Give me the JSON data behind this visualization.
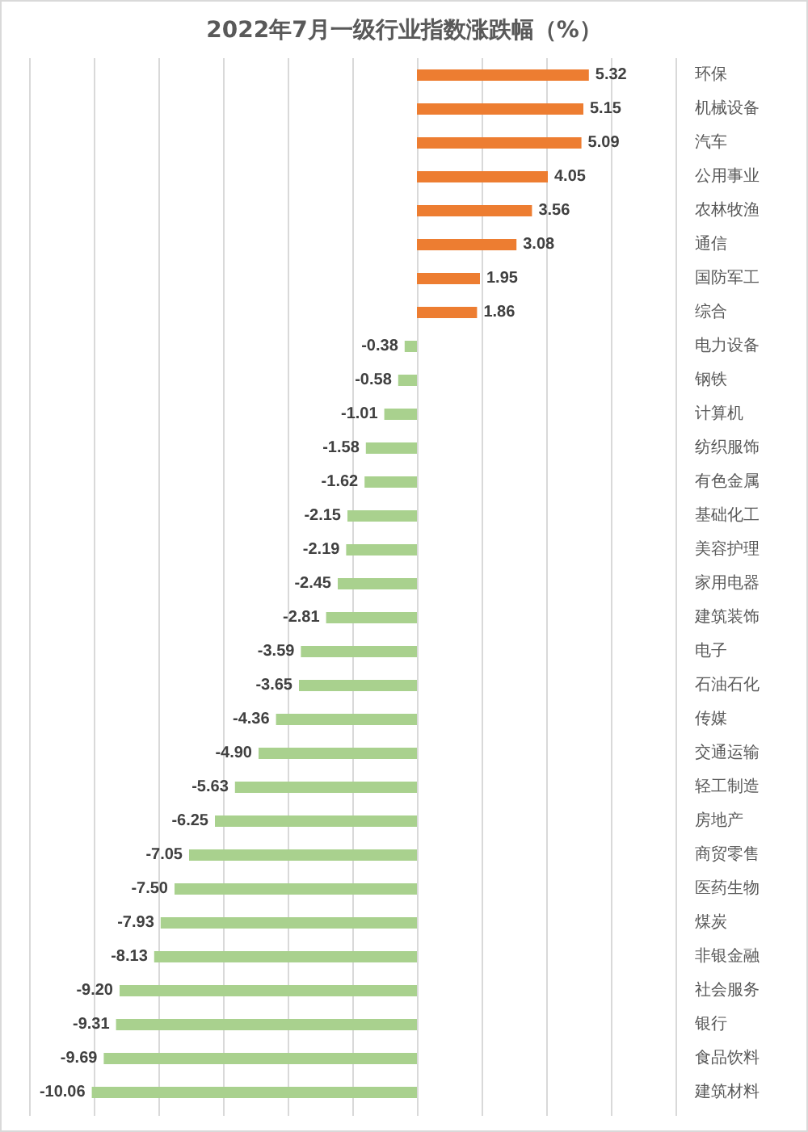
{
  "chart_data": {
    "type": "bar",
    "orientation": "horizontal",
    "title": "2022年7月一级行业指数涨跌幅（%）",
    "categories": [
      "环保",
      "机械设备",
      "汽车",
      "公用事业",
      "农林牧渔",
      "通信",
      "国防军工",
      "综合",
      "电力设备",
      "钢铁",
      "计算机",
      "纺织服饰",
      "有色金属",
      "基础化工",
      "美容护理",
      "家用电器",
      "建筑装饰",
      "电子",
      "石油石化",
      "传媒",
      "交通运输",
      "轻工制造",
      "房地产",
      "商贸零售",
      "医药生物",
      "煤炭",
      "非银金融",
      "社会服务",
      "银行",
      "食品饮料",
      "建筑材料"
    ],
    "values": [
      5.32,
      5.15,
      5.09,
      4.05,
      3.56,
      3.08,
      1.95,
      1.86,
      -0.38,
      -0.58,
      -1.01,
      -1.58,
      -1.62,
      -2.15,
      -2.19,
      -2.45,
      -2.81,
      -3.59,
      -3.65,
      -4.36,
      -4.9,
      -5.63,
      -6.25,
      -7.05,
      -7.5,
      -7.93,
      -8.13,
      -9.2,
      -9.31,
      -9.69,
      -10.06
    ],
    "value_labels": [
      "5.32",
      "5.15",
      "5.09",
      "4.05",
      "3.56",
      "3.08",
      "1.95",
      "1.86",
      "-0.38",
      "-0.58",
      "-1.01",
      "-1.58",
      "-1.62",
      "-2.15",
      "-2.19",
      "-2.45",
      "-2.81",
      "-3.59",
      "-3.65",
      "-4.36",
      "-4.90",
      "-5.63",
      "-6.25",
      "-7.05",
      "-7.50",
      "-7.93",
      "-8.13",
      "-9.20",
      "-9.31",
      "-9.69",
      "-10.06"
    ],
    "colors": [
      "#ed7d31",
      "#ed7d31",
      "#ed7d31",
      "#ed7d31",
      "#ed7d31",
      "#ed7d31",
      "#ed7d31",
      "#ed7d31",
      "#a9d18e",
      "#a9d18e",
      "#a9d18e",
      "#a9d18e",
      "#a9d18e",
      "#a9d18e",
      "#a9d18e",
      "#a9d18e",
      "#a9d18e",
      "#a9d18e",
      "#a9d18e",
      "#a9d18e",
      "#a9d18e",
      "#a9d18e",
      "#a9d18e",
      "#a9d18e",
      "#a9d18e",
      "#a9d18e",
      "#a9d18e",
      "#a9d18e",
      "#a9d18e",
      "#a9d18e",
      "#a9d18e"
    ],
    "xlim": [
      -12,
      8
    ],
    "xticks": [
      {
        "value": -12,
        "label": null
      },
      {
        "value": -10,
        "label": null
      },
      {
        "value": -8,
        "label": null
      },
      {
        "value": -6,
        "label": null
      },
      {
        "value": -4,
        "label": null
      },
      {
        "value": -2,
        "label": null
      },
      {
        "value": 0,
        "label": null
      },
      {
        "value": 2,
        "label": null
      },
      {
        "value": 4,
        "label": null
      },
      {
        "value": 6,
        "label": null
      },
      {
        "value": 8,
        "label": null
      }
    ],
    "grid": "x",
    "tick_labels": "y"
  }
}
